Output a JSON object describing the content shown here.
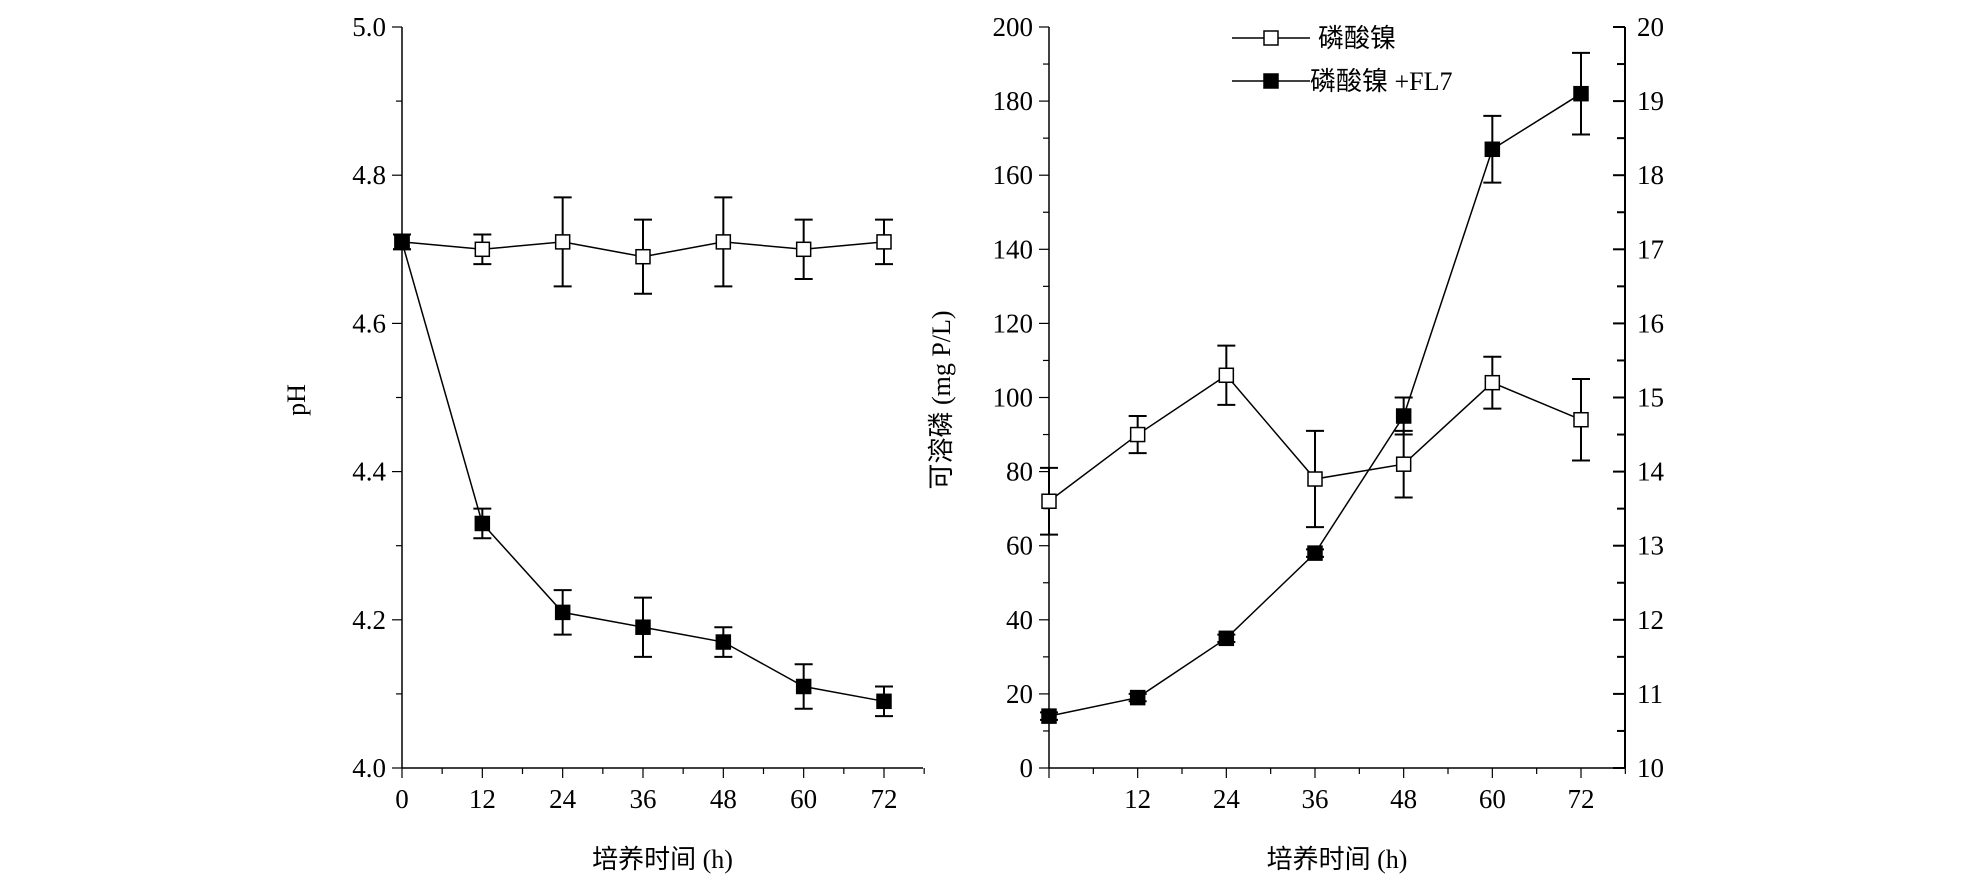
{
  "chart_data": [
    {
      "type": "line",
      "xlabel": "培养时间 (h)",
      "ylabel": "pH",
      "x": [
        0,
        12,
        24,
        36,
        48,
        60,
        72
      ],
      "xlim": [
        0,
        78
      ],
      "ylim": [
        4.0,
        5.0
      ],
      "xticks": [
        "0",
        "12",
        "24",
        "36",
        "48",
        "60",
        "72"
      ],
      "yticks": [
        "4.0",
        "4.2",
        "4.4",
        "4.6",
        "4.8",
        "5.0"
      ],
      "series": [
        {
          "name": "磷酸镍",
          "marker": "open-square",
          "values": [
            4.71,
            4.7,
            4.71,
            4.69,
            4.71,
            4.7,
            4.71
          ],
          "errors": [
            0.01,
            0.02,
            0.06,
            0.05,
            0.06,
            0.04,
            0.03
          ]
        },
        {
          "name": "磷酸镍 +FL7",
          "marker": "filled-square",
          "values": [
            4.71,
            4.33,
            4.21,
            4.19,
            4.17,
            4.11,
            4.09
          ],
          "errors": [
            0.01,
            0.02,
            0.03,
            0.04,
            0.02,
            0.03,
            0.02
          ]
        }
      ]
    },
    {
      "type": "line",
      "xlabel": "培养时间 (h)",
      "ylabel": "可溶磷 (mg P/L)",
      "x": [
        0,
        12,
        24,
        36,
        48,
        60,
        72
      ],
      "xlim": [
        0,
        78
      ],
      "ylim": [
        0,
        200
      ],
      "y2lim": [
        10,
        20
      ],
      "xticks": [
        "12",
        "24",
        "36",
        "48",
        "60",
        "72"
      ],
      "yticks": [
        "0",
        "20",
        "40",
        "60",
        "80",
        "100",
        "120",
        "140",
        "160",
        "180",
        "200"
      ],
      "y2ticks": [
        "10",
        "11",
        "12",
        "13",
        "14",
        "15",
        "16",
        "17",
        "18",
        "19",
        "20"
      ],
      "legend": "top-center",
      "series": [
        {
          "name": "磷酸镍",
          "marker": "open-square",
          "values": [
            72,
            90,
            106,
            78,
            82,
            104,
            94
          ],
          "errors": [
            9,
            5,
            8,
            13,
            9,
            7,
            11
          ]
        },
        {
          "name": "磷酸镍 +FL7",
          "marker": "filled-square",
          "values": [
            14,
            19,
            35,
            58,
            95,
            167,
            182
          ],
          "errors": [
            1,
            1,
            1,
            1,
            5,
            9,
            11
          ]
        }
      ]
    }
  ]
}
